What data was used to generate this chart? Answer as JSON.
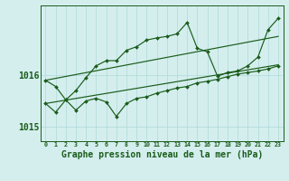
{
  "background_color": "#d4eeee",
  "grid_color": "#b0d8d8",
  "line_color": "#1a5c1a",
  "title": "Graphe pression niveau de la mer (hPa)",
  "title_fontsize": 7.5,
  "xlim": [
    -0.5,
    23.5
  ],
  "ylim": [
    1014.72,
    1017.35
  ],
  "yticks": [
    1015,
    1016
  ],
  "xticks": [
    0,
    1,
    2,
    3,
    4,
    5,
    6,
    7,
    8,
    9,
    10,
    11,
    12,
    13,
    14,
    15,
    16,
    17,
    18,
    19,
    20,
    21,
    22,
    23
  ],
  "trend1_x": [
    0,
    23
  ],
  "trend1_y": [
    1015.9,
    1016.75
  ],
  "trend2_x": [
    0,
    23
  ],
  "trend2_y": [
    1015.45,
    1016.2
  ],
  "jagged1": [
    1015.9,
    1015.78,
    1015.52,
    1015.7,
    1015.95,
    1016.18,
    1016.28,
    1016.28,
    1016.48,
    1016.55,
    1016.68,
    1016.72,
    1016.75,
    1016.8,
    1017.02,
    1016.52,
    1016.45,
    1015.98,
    1016.05,
    1016.08,
    1016.18,
    1016.35,
    1016.88,
    1017.1
  ],
  "jagged2": [
    1015.45,
    1015.28,
    1015.52,
    1015.32,
    1015.5,
    1015.55,
    1015.48,
    1015.2,
    1015.45,
    1015.55,
    1015.58,
    1015.65,
    1015.7,
    1015.75,
    1015.78,
    1015.85,
    1015.88,
    1015.92,
    1015.97,
    1016.02,
    1016.05,
    1016.08,
    1016.12,
    1016.18
  ]
}
